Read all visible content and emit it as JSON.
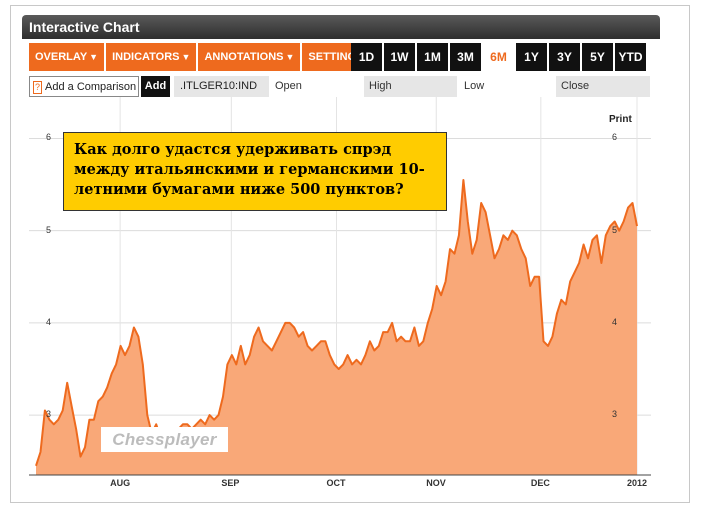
{
  "window": {
    "title": "Interactive Chart"
  },
  "menu": [
    {
      "label": "OVERLAY"
    },
    {
      "label": "INDICATORS"
    },
    {
      "label": "ANNOTATIONS"
    },
    {
      "label": "SETTINGS"
    }
  ],
  "ranges": [
    "1D",
    "1W",
    "1M",
    "3M",
    "6M",
    "1Y",
    "3Y",
    "5Y",
    "YTD"
  ],
  "active_range": "6M",
  "comparison": {
    "prompt_icon": "?",
    "label": "Add a Comparison",
    "add_label": "Add"
  },
  "quote": {
    "ticker": ".ITLGER10:IND",
    "open_label": "Open",
    "high_label": "High",
    "low_label": "Low",
    "close_label": "Close"
  },
  "print_label": "Print",
  "annotation": {
    "text": "Как долго удастся удерживать спрэд между итальянскими и германскими 10-летними бумагами ниже 500 пунктов?"
  },
  "watermark": "Chessplayer",
  "colors": {
    "accent": "#ee6a1e",
    "area_fill": "#f9a878",
    "line": "#ee6a1e",
    "title_bar": "#3a3a3a"
  },
  "chart_data": {
    "type": "area",
    "x_ticks": [
      "AUG",
      "SEP",
      "OCT",
      "NOV",
      "DEC",
      "2012"
    ],
    "x_tick_pos": [
      0.14,
      0.325,
      0.5,
      0.666,
      0.84,
      1.0
    ],
    "y_ticks": [
      "3",
      "4",
      "5",
      "6"
    ],
    "ylim": [
      2.35,
      6.45
    ],
    "grid": true,
    "values": [
      2.45,
      2.6,
      3.05,
      2.95,
      2.9,
      2.95,
      3.05,
      3.35,
      3.1,
      2.85,
      2.55,
      2.65,
      2.95,
      2.95,
      3.15,
      3.2,
      3.3,
      3.45,
      3.55,
      3.75,
      3.65,
      3.75,
      3.95,
      3.85,
      3.55,
      3.0,
      2.8,
      2.9,
      2.75,
      2.8,
      2.75,
      2.8,
      2.85,
      2.9,
      2.9,
      2.85,
      2.9,
      2.95,
      2.9,
      3.0,
      2.95,
      3.0,
      3.2,
      3.55,
      3.65,
      3.55,
      3.75,
      3.55,
      3.65,
      3.85,
      3.95,
      3.8,
      3.75,
      3.7,
      3.8,
      3.9,
      4.0,
      4.0,
      3.95,
      3.85,
      3.9,
      3.75,
      3.7,
      3.75,
      3.8,
      3.8,
      3.65,
      3.55,
      3.5,
      3.55,
      3.65,
      3.55,
      3.6,
      3.55,
      3.65,
      3.8,
      3.7,
      3.75,
      3.9,
      3.9,
      4.0,
      3.8,
      3.85,
      3.8,
      3.8,
      3.95,
      3.75,
      3.8,
      4.0,
      4.15,
      4.4,
      4.3,
      4.45,
      4.8,
      4.75,
      4.95,
      5.55,
      5.1,
      4.75,
      4.9,
      5.3,
      5.2,
      4.95,
      4.7,
      4.8,
      4.95,
      4.9,
      5.0,
      4.95,
      4.8,
      4.7,
      4.4,
      4.5,
      4.5,
      3.8,
      3.75,
      3.85,
      4.1,
      4.25,
      4.2,
      4.45,
      4.55,
      4.65,
      4.85,
      4.7,
      4.9,
      4.95,
      4.65,
      4.95,
      5.05,
      5.1,
      5.0,
      5.1,
      5.25,
      5.3,
      5.05
    ]
  }
}
